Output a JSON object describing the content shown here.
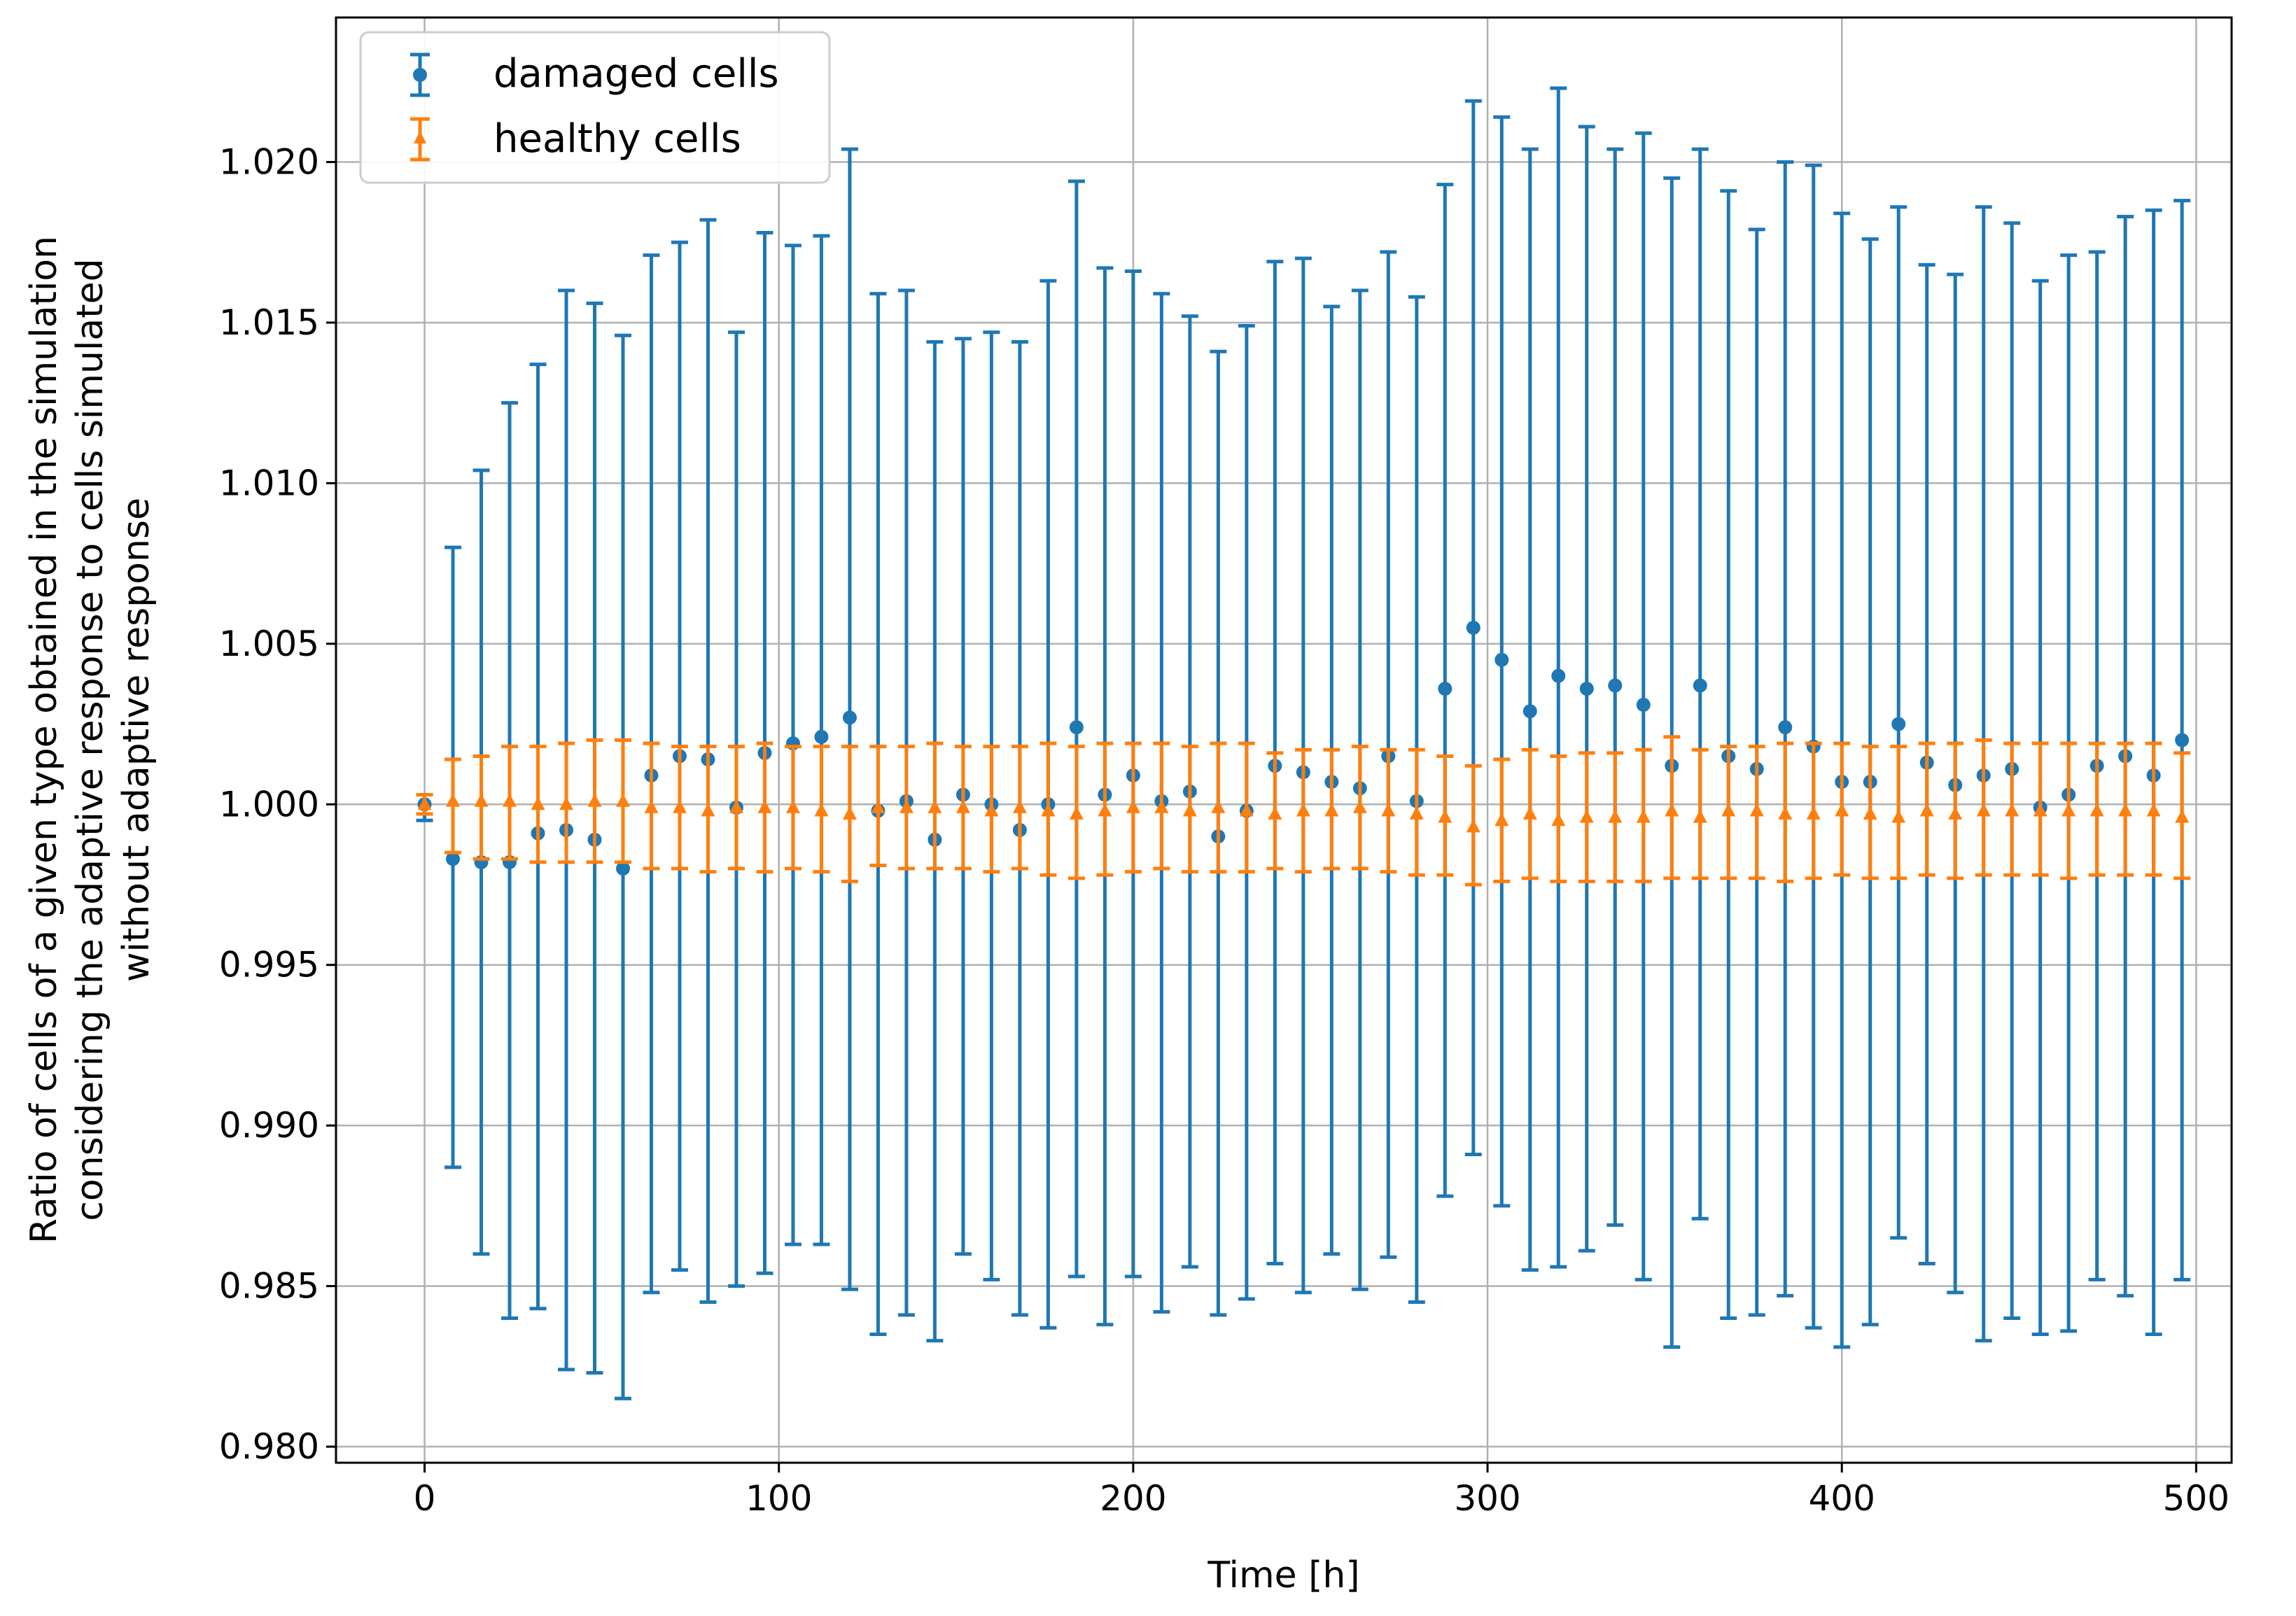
{
  "chart_data": {
    "type": "scatter",
    "title": "",
    "xlabel": "Time [h]",
    "ylabel": [
      "Ratio of cells of a given type obtained in the simulation",
      "considering the adaptive response to cells simulated",
      "without adaptive response"
    ],
    "xlim": [
      -25,
      510
    ],
    "ylim": [
      0.9795,
      1.0245
    ],
    "xticks": [
      0,
      100,
      200,
      300,
      400,
      500
    ],
    "xtick_labels": [
      "0",
      "100",
      "200",
      "300",
      "400",
      "500"
    ],
    "yticks": [
      0.98,
      0.985,
      0.99,
      0.995,
      1.0,
      1.005,
      1.01,
      1.015,
      1.02
    ],
    "ytick_labels": [
      "0.980",
      "0.985",
      "0.990",
      "0.995",
      "1.000",
      "1.005",
      "1.010",
      "1.015",
      "1.020"
    ],
    "grid": true,
    "legend_position": "top-left",
    "colors": {
      "damaged": "#1f77b4",
      "healthy": "#ff7f0e",
      "grid": "#b0b0b0"
    },
    "x": [
      0,
      8,
      16,
      24,
      32,
      40,
      48,
      56,
      64,
      72,
      80,
      88,
      96,
      104,
      112,
      120,
      128,
      136,
      144,
      152,
      160,
      168,
      176,
      184,
      192,
      200,
      208,
      216,
      224,
      232,
      240,
      248,
      256,
      264,
      272,
      280,
      288,
      296,
      304,
      312,
      320,
      328,
      336,
      344,
      352,
      360,
      368,
      376,
      384,
      392,
      400,
      408,
      416,
      424,
      432,
      440,
      448,
      456,
      464,
      472,
      480,
      488,
      496
    ],
    "series": [
      {
        "name": "damaged cells",
        "marker": "circle",
        "values": [
          1.0,
          0.9983,
          0.9982,
          0.9982,
          0.9991,
          0.9992,
          0.9989,
          0.998,
          1.0009,
          1.0015,
          1.0014,
          0.9999,
          1.0016,
          1.0019,
          1.0021,
          1.0027,
          0.9998,
          1.0001,
          0.9989,
          1.0003,
          1.0,
          0.9992,
          1.0,
          1.0024,
          1.0003,
          1.0009,
          1.0001,
          1.0004,
          0.999,
          0.9998,
          1.0012,
          1.001,
          1.0007,
          1.0005,
          1.0015,
          1.0001,
          1.0036,
          1.0055,
          1.0045,
          1.0029,
          1.004,
          1.0036,
          1.0037,
          1.0031,
          1.0012,
          1.0037,
          1.0015,
          1.0011,
          1.0024,
          1.0018,
          1.0007,
          1.0007,
          1.0025,
          1.0013,
          1.0006,
          1.0009,
          1.0011,
          0.9999,
          1.0003,
          1.0012,
          1.0015,
          1.0009,
          1.002
        ],
        "err_low": [
          0.9995,
          0.9887,
          0.986,
          0.984,
          0.9843,
          0.9824,
          0.9823,
          0.9815,
          0.9848,
          0.9855,
          0.9845,
          0.985,
          0.9854,
          0.9863,
          0.9863,
          0.9849,
          0.9835,
          0.9841,
          0.9833,
          0.986,
          0.9852,
          0.9841,
          0.9837,
          0.9853,
          0.9838,
          0.9853,
          0.9842,
          0.9856,
          0.9841,
          0.9846,
          0.9857,
          0.9848,
          0.986,
          0.9849,
          0.9859,
          0.9845,
          0.9878,
          0.9891,
          0.9875,
          0.9855,
          0.9856,
          0.9861,
          0.9869,
          0.9852,
          0.9831,
          0.9871,
          0.984,
          0.9841,
          0.9847,
          0.9837,
          0.9831,
          0.9838,
          0.9865,
          0.9857,
          0.9848,
          0.9833,
          0.984,
          0.9835,
          0.9836,
          0.9852,
          0.9847,
          0.9835,
          0.9852
        ],
        "err_high": [
          1.0003,
          1.008,
          1.0104,
          1.0125,
          1.0137,
          1.016,
          1.0156,
          1.0146,
          1.0171,
          1.0175,
          1.0182,
          1.0147,
          1.0178,
          1.0174,
          1.0177,
          1.0204,
          1.0159,
          1.016,
          1.0144,
          1.0145,
          1.0147,
          1.0144,
          1.0163,
          1.0194,
          1.0167,
          1.0166,
          1.0159,
          1.0152,
          1.0141,
          1.0149,
          1.0169,
          1.017,
          1.0155,
          1.016,
          1.0172,
          1.0158,
          1.0193,
          1.0219,
          1.0214,
          1.0204,
          1.0223,
          1.0211,
          1.0204,
          1.0209,
          1.0195,
          1.0204,
          1.0191,
          1.0179,
          1.02,
          1.0199,
          1.0184,
          1.0176,
          1.0186,
          1.0168,
          1.0165,
          1.0186,
          1.0181,
          1.0163,
          1.0171,
          1.0172,
          1.0183,
          1.0185,
          1.0188
        ]
      },
      {
        "name": "healthy cells",
        "marker": "triangle",
        "values": [
          1.0,
          1.0001,
          1.0001,
          1.0001,
          1.0,
          1.0,
          1.0001,
          1.0001,
          0.9999,
          0.9999,
          0.9998,
          0.9999,
          0.9999,
          0.9999,
          0.9998,
          0.9997,
          0.9999,
          0.9999,
          0.9999,
          0.9999,
          0.9998,
          0.9999,
          0.9998,
          0.9997,
          0.9998,
          0.9999,
          0.9999,
          0.9998,
          0.9999,
          0.9998,
          0.9997,
          0.9998,
          0.9998,
          0.9999,
          0.9998,
          0.9997,
          0.9996,
          0.9993,
          0.9995,
          0.9997,
          0.9995,
          0.9996,
          0.9996,
          0.9996,
          0.9998,
          0.9996,
          0.9998,
          0.9998,
          0.9997,
          0.9997,
          0.9998,
          0.9997,
          0.9996,
          0.9998,
          0.9997,
          0.9998,
          0.9998,
          0.9998,
          0.9998,
          0.9998,
          0.9998,
          0.9998,
          0.9996
        ],
        "err_low": [
          0.9997,
          0.9985,
          0.9983,
          0.9983,
          0.9982,
          0.9982,
          0.9982,
          0.9982,
          0.998,
          0.998,
          0.9979,
          0.998,
          0.9979,
          0.998,
          0.9979,
          0.9976,
          0.9981,
          0.998,
          0.998,
          0.998,
          0.9979,
          0.998,
          0.9978,
          0.9977,
          0.9978,
          0.9979,
          0.998,
          0.9979,
          0.9979,
          0.9979,
          0.998,
          0.9979,
          0.998,
          0.998,
          0.9979,
          0.9978,
          0.9978,
          0.9975,
          0.9976,
          0.9977,
          0.9976,
          0.9976,
          0.9976,
          0.9976,
          0.9977,
          0.9977,
          0.9977,
          0.9977,
          0.9976,
          0.9977,
          0.9978,
          0.9977,
          0.9977,
          0.9978,
          0.9977,
          0.9978,
          0.9978,
          0.9978,
          0.9977,
          0.9978,
          0.9978,
          0.9978,
          0.9977
        ],
        "err_high": [
          1.0003,
          1.0014,
          1.0015,
          1.0018,
          1.0018,
          1.0019,
          1.002,
          1.002,
          1.0019,
          1.0018,
          1.0018,
          1.0018,
          1.0019,
          1.0018,
          1.0018,
          1.0018,
          1.0018,
          1.0018,
          1.0019,
          1.0018,
          1.0018,
          1.0018,
          1.0019,
          1.0018,
          1.0019,
          1.0019,
          1.0019,
          1.0018,
          1.0019,
          1.0019,
          1.0016,
          1.0017,
          1.0017,
          1.0018,
          1.0017,
          1.0017,
          1.0015,
          1.0012,
          1.0014,
          1.0017,
          1.0015,
          1.0016,
          1.0016,
          1.0017,
          1.0021,
          1.0017,
          1.0018,
          1.0018,
          1.0019,
          1.0019,
          1.0019,
          1.0018,
          1.0018,
          1.0019,
          1.0019,
          1.002,
          1.0019,
          1.0019,
          1.0019,
          1.0019,
          1.0019,
          1.0019,
          1.0016
        ]
      }
    ]
  }
}
